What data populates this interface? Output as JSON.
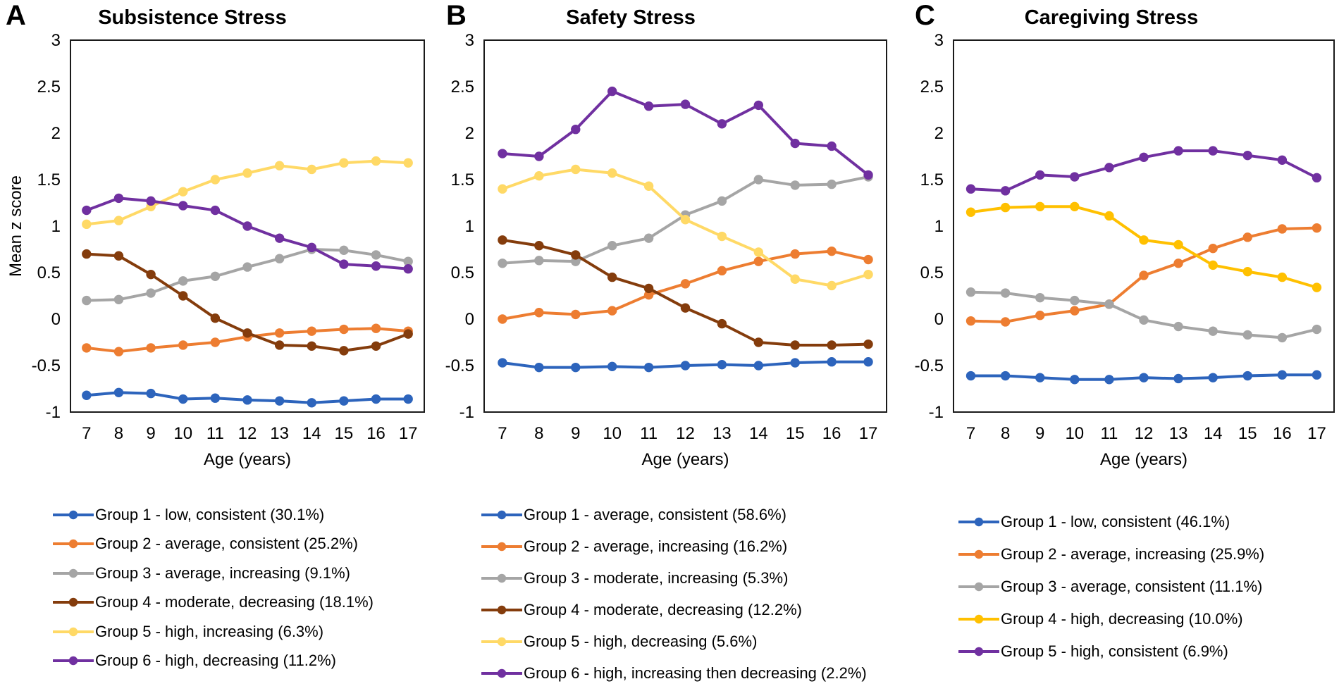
{
  "page": {
    "background": "#ffffff",
    "text_color": "#000000"
  },
  "figure": {
    "x_axis_label": "Age (years)",
    "y_axis_label": "Mean z score",
    "ages": [
      7,
      8,
      9,
      10,
      11,
      12,
      13,
      14,
      15,
      16,
      17
    ]
  },
  "chart_data": [
    {
      "type": "line",
      "panel_letter": "A",
      "title": "Subsistence Stress",
      "xlabel": "Age (years)",
      "ylabel": "Mean z score",
      "x": [
        7,
        8,
        9,
        10,
        11,
        12,
        13,
        14,
        15,
        16,
        17
      ],
      "ylim": [
        -1,
        3
      ],
      "yticks": [
        3,
        2.5,
        2,
        1.5,
        1,
        0.5,
        0,
        -0.5,
        -1
      ],
      "grid": false,
      "legend_position": "below",
      "series": [
        {
          "name": "Group 1 - low, consistent (30.1%)",
          "color": "#2D64BC",
          "values": [
            -0.82,
            -0.79,
            -0.8,
            -0.86,
            -0.85,
            -0.87,
            -0.88,
            -0.9,
            -0.88,
            -0.86,
            -0.86
          ]
        },
        {
          "name": "Group 2 - average, consistent (25.2%)",
          "color": "#ED7D31",
          "values": [
            -0.31,
            -0.35,
            -0.31,
            -0.28,
            -0.25,
            -0.19,
            -0.15,
            -0.13,
            -0.11,
            -0.1,
            -0.13
          ]
        },
        {
          "name": "Group 3 - average, increasing (9.1%)",
          "color": "#A5A5A5",
          "values": [
            0.2,
            0.21,
            0.28,
            0.41,
            0.46,
            0.56,
            0.65,
            0.75,
            0.74,
            0.69,
            0.62
          ]
        },
        {
          "name": "Group 4 - moderate, decreasing (18.1%)",
          "color": "#843C0C",
          "values": [
            0.7,
            0.68,
            0.48,
            0.25,
            0.01,
            -0.15,
            -0.28,
            -0.29,
            -0.34,
            -0.29,
            -0.16
          ]
        },
        {
          "name": "Group 5 - high, increasing (6.3%)",
          "color": "#FFD966",
          "values": [
            1.02,
            1.06,
            1.21,
            1.37,
            1.5,
            1.57,
            1.65,
            1.61,
            1.68,
            1.7,
            1.68
          ]
        },
        {
          "name": "Group 6 - high, decreasing (11.2%)",
          "color": "#7030A0",
          "values": [
            1.17,
            1.3,
            1.27,
            1.22,
            1.17,
            1.0,
            0.87,
            0.77,
            0.59,
            0.57,
            0.54
          ]
        }
      ]
    },
    {
      "type": "line",
      "panel_letter": "B",
      "title": "Safety Stress",
      "xlabel": "Age (years)",
      "ylabel": "",
      "x": [
        7,
        8,
        9,
        10,
        11,
        12,
        13,
        14,
        15,
        16,
        17
      ],
      "ylim": [
        -1,
        3
      ],
      "yticks": [
        3,
        2.5,
        2,
        1.5,
        1,
        0.5,
        0,
        -0.5,
        -1
      ],
      "grid": false,
      "legend_position": "below",
      "series": [
        {
          "name": "Group 1 - average, consistent (58.6%)",
          "color": "#2D64BC",
          "values": [
            -0.47,
            -0.52,
            -0.52,
            -0.51,
            -0.52,
            -0.5,
            -0.49,
            -0.5,
            -0.47,
            -0.46,
            -0.46
          ]
        },
        {
          "name": "Group 2 - average, increasing (16.2%)",
          "color": "#ED7D31",
          "values": [
            0.0,
            0.07,
            0.05,
            0.09,
            0.26,
            0.38,
            0.52,
            0.62,
            0.7,
            0.73,
            0.64
          ]
        },
        {
          "name": "Group 3 - moderate, increasing (5.3%)",
          "color": "#A5A5A5",
          "values": [
            0.6,
            0.63,
            0.62,
            0.79,
            0.87,
            1.12,
            1.27,
            1.5,
            1.44,
            1.45,
            1.53
          ]
        },
        {
          "name": "Group 4 - moderate, decreasing (12.2%)",
          "color": "#843C0C",
          "values": [
            0.85,
            0.79,
            0.69,
            0.45,
            0.33,
            0.12,
            -0.05,
            -0.25,
            -0.28,
            -0.28,
            -0.27
          ]
        },
        {
          "name": "Group 5 - high, decreasing (5.6%)",
          "color": "#FFD966",
          "values": [
            1.4,
            1.54,
            1.61,
            1.57,
            1.43,
            1.07,
            0.89,
            0.72,
            0.43,
            0.36,
            0.48
          ]
        },
        {
          "name": "Group 6 - high, increasing then decreasing (2.2%)",
          "color": "#7030A0",
          "values": [
            1.78,
            1.75,
            2.04,
            2.45,
            2.29,
            2.31,
            2.1,
            2.3,
            1.89,
            1.86,
            1.55
          ]
        }
      ]
    },
    {
      "type": "line",
      "panel_letter": "C",
      "title": "Caregiving Stress",
      "xlabel": "Age (years)",
      "ylabel": "",
      "x": [
        7,
        8,
        9,
        10,
        11,
        12,
        13,
        14,
        15,
        16,
        17
      ],
      "ylim": [
        -1,
        3
      ],
      "yticks": [
        3,
        2.5,
        2,
        1.5,
        1,
        0.5,
        0,
        -0.5,
        -1
      ],
      "grid": false,
      "legend_position": "below",
      "series": [
        {
          "name": "Group 1 - low, consistent (46.1%)",
          "color": "#2D64BC",
          "values": [
            -0.61,
            -0.61,
            -0.63,
            -0.65,
            -0.65,
            -0.63,
            -0.64,
            -0.63,
            -0.61,
            -0.6,
            -0.6
          ]
        },
        {
          "name": "Group 2 - average, increasing (25.9%)",
          "color": "#ED7D31",
          "values": [
            -0.02,
            -0.03,
            0.04,
            0.09,
            0.16,
            0.47,
            0.6,
            0.76,
            0.88,
            0.97,
            0.98
          ]
        },
        {
          "name": "Group 3 - average, consistent (11.1%)",
          "color": "#A5A5A5",
          "values": [
            0.29,
            0.28,
            0.23,
            0.2,
            0.16,
            -0.01,
            -0.08,
            -0.13,
            -0.17,
            -0.2,
            -0.11
          ]
        },
        {
          "name": "Group 4 - high, decreasing (10.0%)",
          "color": "#FFC000",
          "values": [
            1.15,
            1.2,
            1.21,
            1.21,
            1.11,
            0.85,
            0.8,
            0.58,
            0.51,
            0.45,
            0.34
          ]
        },
        {
          "name": "Group 5 - high, consistent (6.9%)",
          "color": "#7030A0",
          "values": [
            1.4,
            1.38,
            1.55,
            1.53,
            1.63,
            1.74,
            1.81,
            1.81,
            1.76,
            1.71,
            1.52
          ]
        }
      ]
    }
  ]
}
